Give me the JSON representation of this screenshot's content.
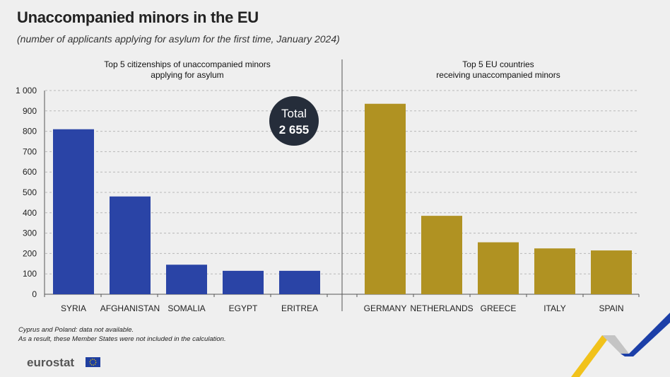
{
  "header": {
    "title": "Unaccompanied minors in the EU",
    "subtitle": "(number of applicants applying for asylum for the first time, January 2024)"
  },
  "total_badge": {
    "label": "Total",
    "value": "2 655"
  },
  "colors": {
    "left_bars": "#2a44a6",
    "right_bars": "#b09222",
    "badge": "#252d3a",
    "grid": "#b8b8b8",
    "background": "#efefef"
  },
  "chart_data": [
    {
      "type": "bar",
      "title": "Top 5 citizenships of unaccompanied minors applying for asylum",
      "title_lines": [
        "Top 5 citizenships of unaccompanied minors",
        "applying for asylum"
      ],
      "categories": [
        "SYRIA",
        "AFGHANISTAN",
        "SOMALIA",
        "EGYPT",
        "ERITREA"
      ],
      "values": [
        810,
        480,
        145,
        115,
        115
      ],
      "ylim": [
        0,
        1000
      ],
      "yticks": [
        "0",
        "100",
        "200",
        "300",
        "400",
        "500",
        "600",
        "700",
        "800",
        "900",
        "1 000"
      ],
      "grid": true
    },
    {
      "type": "bar",
      "title": "Top 5 EU countries receiving unaccompanied minors",
      "title_lines": [
        "Top 5 EU countries",
        "receiving unaccompanied minors"
      ],
      "categories": [
        "GERMANY",
        "NETHERLANDS",
        "GREECE",
        "ITALY",
        "SPAIN"
      ],
      "values": [
        935,
        385,
        255,
        225,
        215
      ],
      "ylim": [
        0,
        1000
      ],
      "grid": true
    }
  ],
  "footnotes": [
    "Cyprus and Poland: data not available.",
    "As a result, these Member States were not included in the calculation."
  ],
  "logo": {
    "text": "eurostat"
  }
}
